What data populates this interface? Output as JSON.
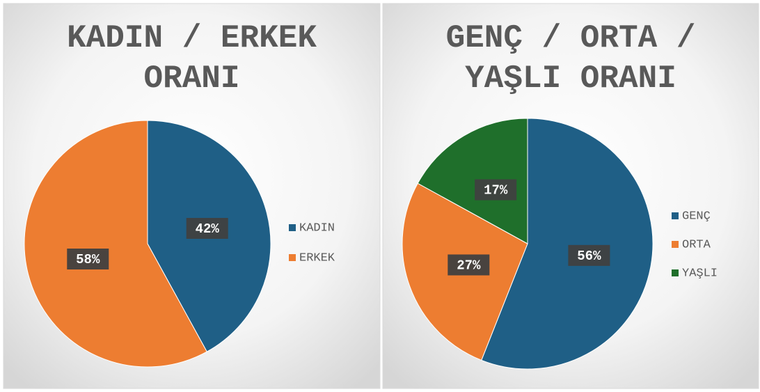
{
  "chart_data": [
    {
      "type": "pie",
      "title": "KADIN / ERKEK ORANI",
      "categories": [
        "KADIN",
        "ERKEK"
      ],
      "values": [
        42,
        58
      ],
      "value_labels": [
        "42%",
        "58%"
      ],
      "colors": [
        "#1f5f86",
        "#ed7d31"
      ],
      "legend": "right"
    },
    {
      "type": "pie",
      "title": "GENÇ / ORTA / YAŞLI ORANI",
      "categories": [
        "GENÇ",
        "ORTA",
        "YAŞLI"
      ],
      "values": [
        56,
        27,
        17
      ],
      "value_labels": [
        "56%",
        "27%",
        "17%"
      ],
      "colors": [
        "#1f5f86",
        "#ed7d31",
        "#1f6f2b"
      ],
      "legend": "right"
    }
  ]
}
